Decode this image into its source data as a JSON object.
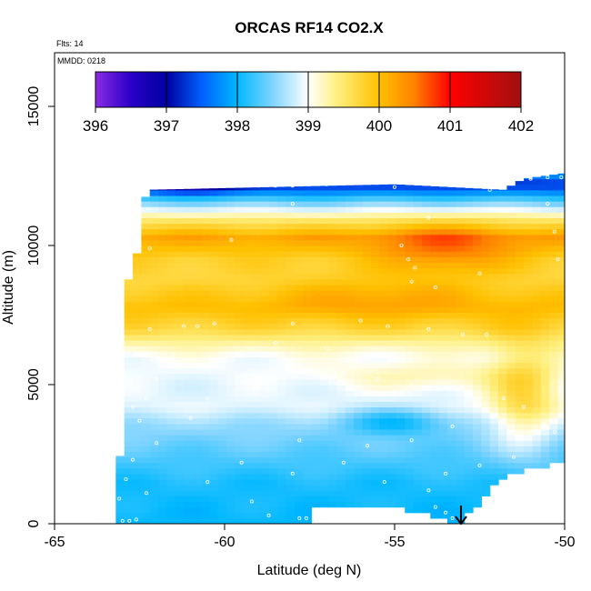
{
  "chart_data": {
    "type": "heatmap",
    "title": "ORCAS RF14 CO2.X",
    "annotations": {
      "flights": "Flts: 14",
      "date": "MMDD: 0218"
    },
    "xlabel": "Latitude (deg N)",
    "ylabel": "Altitude (m)",
    "xlim": [
      -65,
      -50
    ],
    "ylim": [
      0,
      16500
    ],
    "x_ticks": [
      -65,
      -60,
      -55,
      -50
    ],
    "x_tick_labels": [
      "-65",
      "-60",
      "-55",
      "-50"
    ],
    "y_ticks": [
      0,
      5000,
      10000,
      15000
    ],
    "y_tick_labels": [
      "0",
      "5000",
      "10000",
      "15000"
    ],
    "colorbar": {
      "range": [
        396,
        402
      ],
      "ticks": [
        396,
        397,
        398,
        399,
        400,
        401,
        402
      ],
      "tick_labels": [
        "396",
        "397",
        "398",
        "399",
        "400",
        "401",
        "402"
      ],
      "stops": [
        {
          "v": 396.0,
          "c": "#8a2be2"
        },
        {
          "v": 396.5,
          "c": "#2a00c8"
        },
        {
          "v": 397.0,
          "c": "#0000a0"
        },
        {
          "v": 397.5,
          "c": "#0060ff"
        },
        {
          "v": 398.0,
          "c": "#00b8ff"
        },
        {
          "v": 398.5,
          "c": "#80d4ff"
        },
        {
          "v": 399.0,
          "c": "#ffffff"
        },
        {
          "v": 399.4,
          "c": "#fff080"
        },
        {
          "v": 400.0,
          "c": "#ffc000"
        },
        {
          "v": 400.5,
          "c": "#ff8000"
        },
        {
          "v": 401.0,
          "c": "#ff0000"
        },
        {
          "v": 402.0,
          "c": "#a01010"
        }
      ]
    },
    "grid_lat_range": [
      -63.2,
      -50.0
    ],
    "grid_lat_step": 0.25,
    "grid_alt_step": 200,
    "domain_top": [
      {
        "lat": -63.2,
        "alt": 0
      },
      {
        "lat": -63.0,
        "alt": 3900
      },
      {
        "lat": -62.9,
        "alt": 8500
      },
      {
        "lat": -62.5,
        "alt": 10000
      },
      {
        "lat": -62.3,
        "alt": 12000
      },
      {
        "lat": -55.0,
        "alt": 12200
      },
      {
        "lat": -51.8,
        "alt": 12000
      },
      {
        "lat": -51.2,
        "alt": 12400
      },
      {
        "lat": -50.0,
        "alt": 12600
      }
    ],
    "domain_bottom": [
      {
        "lat": -63.2,
        "alt": 0
      },
      {
        "lat": -57.6,
        "alt": 0
      },
      {
        "lat": -57.5,
        "alt": 700
      },
      {
        "lat": -55.0,
        "alt": 700
      },
      {
        "lat": -53.5,
        "alt": 300
      },
      {
        "lat": -53.2,
        "alt": 0
      },
      {
        "lat": -52.6,
        "alt": 700
      },
      {
        "lat": -51.8,
        "alt": 1800
      },
      {
        "lat": -51.0,
        "alt": 2100
      },
      {
        "lat": -50.0,
        "alt": 2300
      }
    ],
    "vertical_profile": [
      {
        "alt": 0,
        "co2": 398.0
      },
      {
        "alt": 1500,
        "co2": 398.1
      },
      {
        "alt": 2800,
        "co2": 398.4
      },
      {
        "alt": 3600,
        "co2": 398.6
      },
      {
        "alt": 4200,
        "co2": 398.9
      },
      {
        "alt": 5000,
        "co2": 398.9
      },
      {
        "alt": 6000,
        "co2": 399.0
      },
      {
        "alt": 6500,
        "co2": 399.3
      },
      {
        "alt": 7000,
        "co2": 399.7
      },
      {
        "alt": 7800,
        "co2": 400.0
      },
      {
        "alt": 8800,
        "co2": 399.7
      },
      {
        "alt": 9500,
        "co2": 399.8
      },
      {
        "alt": 10300,
        "co2": 400.2
      },
      {
        "alt": 11000,
        "co2": 399.4
      },
      {
        "alt": 11700,
        "co2": 398.2
      },
      {
        "alt": 12200,
        "co2": 397.2
      },
      {
        "alt": 12600,
        "co2": 397.8
      }
    ],
    "enhancements": [
      {
        "lat_c": -53.5,
        "lat_w": 2.0,
        "alt_c": 9900,
        "alt_w": 900,
        "amp": 0.6
      },
      {
        "lat_c": -55.5,
        "lat_w": 3.0,
        "alt_c": 8200,
        "alt_w": 800,
        "amp": 0.3
      },
      {
        "lat_c": -51.2,
        "lat_w": 1.0,
        "alt_c": 4500,
        "alt_w": 2000,
        "amp": 0.8
      },
      {
        "lat_c": -55.0,
        "lat_w": 1.5,
        "alt_c": 3700,
        "alt_w": 500,
        "amp": -0.6
      },
      {
        "lat_c": -54.0,
        "lat_w": 3.0,
        "alt_c": 5300,
        "alt_w": 500,
        "amp": 0.3
      },
      {
        "lat_c": -61.0,
        "lat_w": 1.5,
        "alt_c": 12100,
        "alt_w": 250,
        "amp": -0.6
      }
    ],
    "flight_track_points": [
      {
        "lat": -63.0,
        "alt": 100
      },
      {
        "lat": -62.8,
        "alt": 100
      },
      {
        "lat": -62.6,
        "alt": 150
      },
      {
        "lat": -63.1,
        "alt": 900
      },
      {
        "lat": -62.9,
        "alt": 1600
      },
      {
        "lat": -62.3,
        "alt": 1100
      },
      {
        "lat": -62.7,
        "alt": 2300
      },
      {
        "lat": -63.0,
        "alt": 2800
      },
      {
        "lat": -62.0,
        "alt": 2900
      },
      {
        "lat": -62.5,
        "alt": 3700
      },
      {
        "lat": -61.0,
        "alt": 3800
      },
      {
        "lat": -62.7,
        "alt": 4200
      },
      {
        "lat": -62.3,
        "alt": 4500
      },
      {
        "lat": -60.5,
        "alt": 4500
      },
      {
        "lat": -62.0,
        "alt": 5200
      },
      {
        "lat": -59.5,
        "alt": 5100
      },
      {
        "lat": -61.5,
        "alt": 6000
      },
      {
        "lat": -62.2,
        "alt": 7000
      },
      {
        "lat": -61.2,
        "alt": 7100
      },
      {
        "lat": -60.8,
        "alt": 7100
      },
      {
        "lat": -60.3,
        "alt": 7200
      },
      {
        "lat": -58.0,
        "alt": 7200
      },
      {
        "lat": -56.0,
        "alt": 7300
      },
      {
        "lat": -55.2,
        "alt": 7100
      },
      {
        "lat": -54.0,
        "alt": 7000
      },
      {
        "lat": -53.0,
        "alt": 6800
      },
      {
        "lat": -52.3,
        "alt": 6800
      },
      {
        "lat": -58.5,
        "alt": 6500
      },
      {
        "lat": -57.0,
        "alt": 6300
      },
      {
        "lat": -56.5,
        "alt": 5500
      },
      {
        "lat": -55.5,
        "alt": 5200
      },
      {
        "lat": -54.5,
        "alt": 5000
      },
      {
        "lat": -53.5,
        "alt": 4900
      },
      {
        "lat": -52.8,
        "alt": 4700
      },
      {
        "lat": -51.8,
        "alt": 4500
      },
      {
        "lat": -51.2,
        "alt": 4200
      },
      {
        "lat": -50.6,
        "alt": 3600
      },
      {
        "lat": -50.3,
        "alt": 3300
      },
      {
        "lat": -53.3,
        "alt": 3500
      },
      {
        "lat": -54.5,
        "alt": 3000
      },
      {
        "lat": -55.8,
        "alt": 2800
      },
      {
        "lat": -57.8,
        "alt": 3000
      },
      {
        "lat": -59.5,
        "alt": 2200
      },
      {
        "lat": -58.0,
        "alt": 1800
      },
      {
        "lat": -56.5,
        "alt": 2200
      },
      {
        "lat": -55.3,
        "alt": 1500
      },
      {
        "lat": -54.0,
        "alt": 1200
      },
      {
        "lat": -53.5,
        "alt": 1800
      },
      {
        "lat": -52.5,
        "alt": 2100
      },
      {
        "lat": -51.5,
        "alt": 2400
      },
      {
        "lat": -60.5,
        "alt": 1500
      },
      {
        "lat": -59.2,
        "alt": 800
      },
      {
        "lat": -58.7,
        "alt": 300
      },
      {
        "lat": -57.8,
        "alt": 200
      },
      {
        "lat": -57.6,
        "alt": 200
      },
      {
        "lat": -53.8,
        "alt": 600
      },
      {
        "lat": -53.5,
        "alt": 400
      },
      {
        "lat": -53.3,
        "alt": 200
      },
      {
        "lat": -62.2,
        "alt": 9900
      },
      {
        "lat": -62.5,
        "alt": 10000
      },
      {
        "lat": -59.8,
        "alt": 10200
      },
      {
        "lat": -54.8,
        "alt": 10000
      },
      {
        "lat": -54.6,
        "alt": 9500
      },
      {
        "lat": -54.4,
        "alt": 9200
      },
      {
        "lat": -53.8,
        "alt": 8500
      },
      {
        "lat": -54.5,
        "alt": 8700
      },
      {
        "lat": -52.5,
        "alt": 9000
      },
      {
        "lat": -50.2,
        "alt": 9500
      },
      {
        "lat": -50.3,
        "alt": 10500
      },
      {
        "lat": -50.5,
        "alt": 11500
      },
      {
        "lat": -54.0,
        "alt": 11000
      },
      {
        "lat": -58.0,
        "alt": 11500
      },
      {
        "lat": -51.0,
        "alt": 12400
      },
      {
        "lat": -52.2,
        "alt": 12000
      },
      {
        "lat": -61.7,
        "alt": 12100
      },
      {
        "lat": -61.3,
        "alt": 12100
      },
      {
        "lat": -60.9,
        "alt": 12100
      },
      {
        "lat": -60.5,
        "alt": 12150
      },
      {
        "lat": -60.0,
        "alt": 12150
      },
      {
        "lat": -59.5,
        "alt": 12150
      },
      {
        "lat": -59.0,
        "alt": 12150
      },
      {
        "lat": -58.5,
        "alt": 12150
      },
      {
        "lat": -58.0,
        "alt": 12150
      },
      {
        "lat": -57.5,
        "alt": 12200
      },
      {
        "lat": -57.0,
        "alt": 12200
      },
      {
        "lat": -56.5,
        "alt": 12250
      },
      {
        "lat": -56.0,
        "alt": 12250
      },
      {
        "lat": -55.5,
        "alt": 12250
      },
      {
        "lat": -55.0,
        "alt": 12100
      },
      {
        "lat": -51.5,
        "alt": 12450
      },
      {
        "lat": -51.0,
        "alt": 12450
      },
      {
        "lat": -50.5,
        "alt": 12450
      },
      {
        "lat": -50.1,
        "alt": 12450
      }
    ],
    "marker": {
      "lat": -53.05,
      "alt": 700,
      "symbol": "down-arrow"
    }
  }
}
